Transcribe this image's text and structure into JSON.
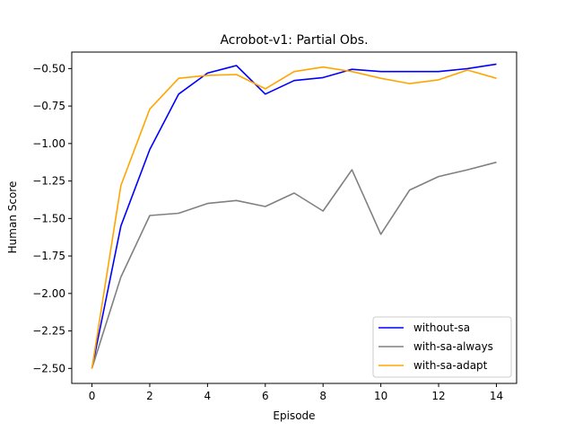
{
  "chart_data": {
    "type": "line",
    "title": "Acrobot-v1: Partial Obs.",
    "xlabel": "Episode",
    "ylabel": "Human Score",
    "xlim": [
      -0.7,
      14.7
    ],
    "ylim": [
      -2.6,
      -0.39
    ],
    "xticks": [
      0,
      2,
      4,
      6,
      8,
      10,
      12,
      14
    ],
    "yticks": [
      -2.5,
      -2.25,
      -2.0,
      -1.75,
      -1.5,
      -1.25,
      -1.0,
      -0.75,
      -0.5
    ],
    "ytick_labels": [
      "−2.50",
      "−2.25",
      "−2.00",
      "−1.75",
      "−1.50",
      "−1.25",
      "−1.00",
      "−0.75",
      "−0.50"
    ],
    "grid": false,
    "legend_position": "lower-right",
    "x": [
      0,
      1,
      2,
      3,
      4,
      5,
      6,
      7,
      8,
      9,
      10,
      11,
      12,
      13,
      14
    ],
    "series": [
      {
        "name": "without-sa",
        "color": "#0000ff",
        "values": [
          -2.5,
          -1.55,
          -1.04,
          -0.67,
          -0.53,
          -0.48,
          -0.67,
          -0.58,
          -0.56,
          -0.505,
          -0.52,
          -0.52,
          -0.52,
          -0.5,
          -0.47
        ]
      },
      {
        "name": "with-sa-always",
        "color": "#808080",
        "values": [
          -2.5,
          -1.89,
          -1.48,
          -1.465,
          -1.4,
          -1.38,
          -1.42,
          -1.33,
          -1.45,
          -1.175,
          -1.605,
          -1.31,
          -1.22,
          -1.175,
          -1.125
        ]
      },
      {
        "name": "with-sa-adapt",
        "color": "#ffa500",
        "values": [
          -2.5,
          -1.28,
          -0.77,
          -0.565,
          -0.545,
          -0.54,
          -0.635,
          -0.52,
          -0.49,
          -0.52,
          -0.565,
          -0.6,
          -0.575,
          -0.51,
          -0.565
        ]
      }
    ]
  }
}
